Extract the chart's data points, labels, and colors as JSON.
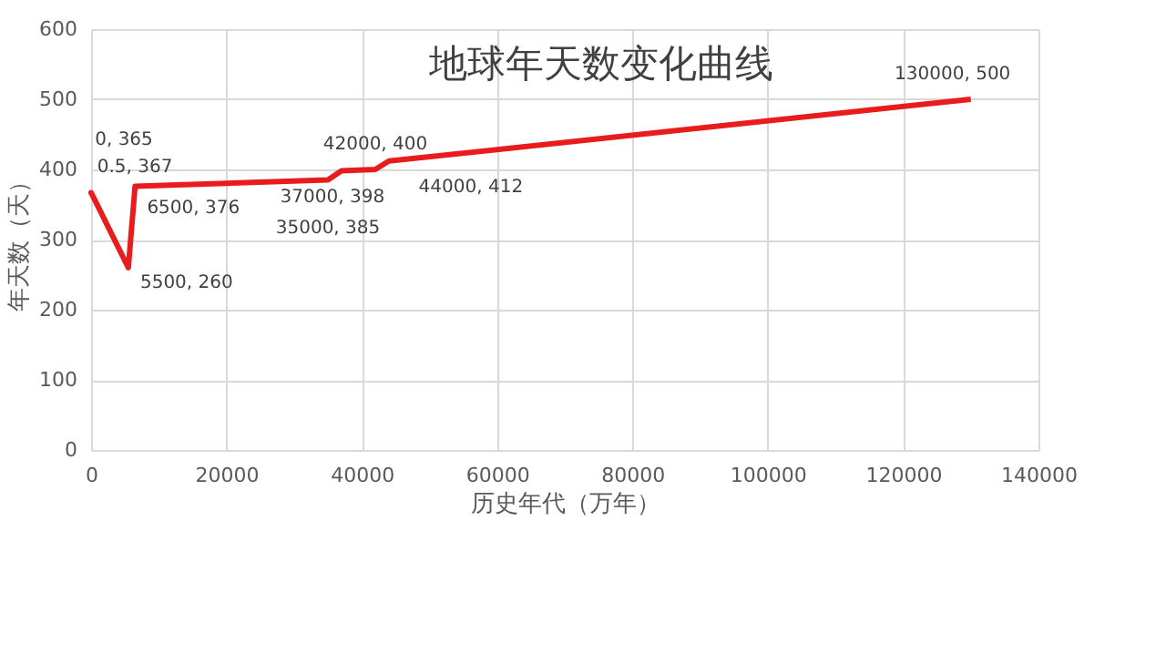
{
  "chart_data": {
    "type": "line",
    "title": "地球年天数变化曲线",
    "xlabel": "历史年代（万年）",
    "ylabel": "年天数（天）",
    "x": [
      0,
      0.5,
      5500,
      6500,
      35000,
      37000,
      42000,
      44000,
      130000
    ],
    "series": [
      {
        "color": "#e81c1c",
        "values": [
          365,
          367,
          260,
          376,
          385,
          398,
          400,
          412,
          500
        ],
        "value_labels": [
          "0, 365",
          "0.5, 367",
          "5500, 260",
          "6500, 376",
          "35000, 385",
          "37000, 398",
          "42000, 400",
          "44000, 412",
          "130000, 500"
        ]
      }
    ],
    "xlim": [
      0,
      140000
    ],
    "xticks": [
      0,
      20000,
      40000,
      60000,
      80000,
      100000,
      120000,
      140000
    ],
    "ylim": [
      0,
      600
    ],
    "yticks": [
      0,
      100,
      200,
      300,
      400,
      500,
      600
    ],
    "grid": true,
    "marker": "none",
    "line_style": "solid"
  }
}
